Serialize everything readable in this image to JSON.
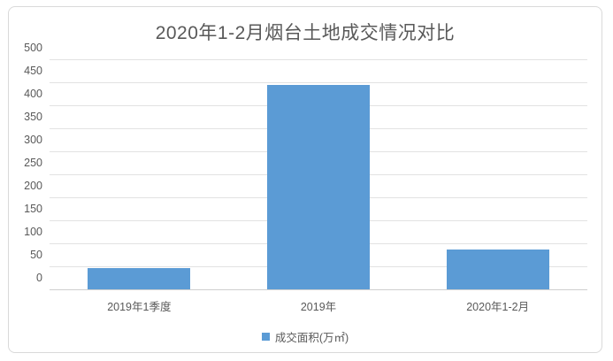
{
  "chart": {
    "colors": {
      "bar": "#5b9bd5",
      "title_text": "#595959",
      "axis_text": "#595959",
      "gridline": "#e2e2e2",
      "axis_line": "#cfcfcf",
      "card_border": "#d9d9d9"
    }
  },
  "chart_data": {
    "type": "bar",
    "title": "2020年1-2月烟台土地成交情况对比",
    "categories": [
      "2019年1季度",
      "2019年",
      "2020年1-2月"
    ],
    "series": [
      {
        "name": "成交面积(万㎡)",
        "values": [
          46,
          445,
          87
        ]
      }
    ],
    "xlabel": "",
    "ylabel": "",
    "ylim": [
      0,
      500
    ],
    "ytick_step": 50,
    "grid": true,
    "legend_position": "bottom"
  }
}
